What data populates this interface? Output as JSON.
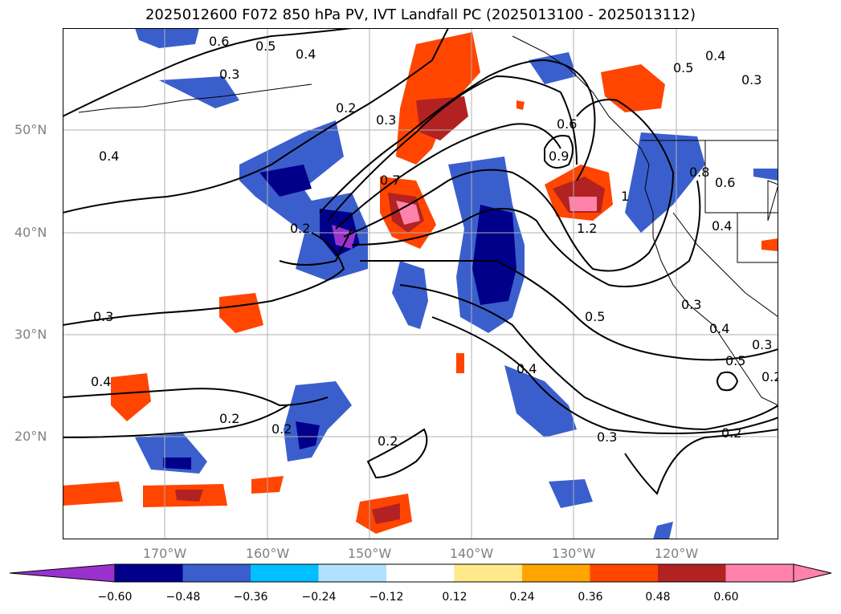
{
  "title": "2025012600 F072 850 hPa PV, IVT Landfall PC (2025013100 - 2025013112)",
  "lat_labels": [
    "50°N",
    "40°N",
    "30°N",
    "20°N"
  ],
  "lon_labels": [
    "170°W",
    "160°W",
    "150°W",
    "140°W",
    "130°W",
    "120°W"
  ],
  "colorbar": {
    "levels": [
      "−0.60",
      "−0.48",
      "−0.36",
      "−0.24",
      "−0.12",
      "0.12",
      "0.24",
      "0.36",
      "0.48",
      "0.60"
    ],
    "colors": [
      "#9932cc",
      "#00008b",
      "#3a5fcd",
      "#00bfff",
      "#b0e2ff",
      "#ffffff",
      "#ffe98a",
      "#ffa500",
      "#ff4500",
      "#b22222",
      "#ff82ab"
    ]
  },
  "contour_labels": [
    "0.6",
    "0.5",
    "0.4",
    "0.3",
    "0.2",
    "0.3",
    "0.4",
    "0.7",
    "0.6",
    "0.9",
    "1",
    "1.2",
    "0.8",
    "0.6",
    "0.4",
    "0.5",
    "0.4",
    "0.3",
    "0.2",
    "0.2",
    "0.3",
    "0.4",
    "0.2",
    "0.3",
    "0.2",
    "0.3",
    "0.5",
    "0.4",
    "0.5",
    "0.4",
    "0.3",
    "0.2",
    "0.2"
  ],
  "colors": {
    "land_outline": "#000000",
    "grid": "#b0b0b0",
    "contour": "#000000"
  }
}
